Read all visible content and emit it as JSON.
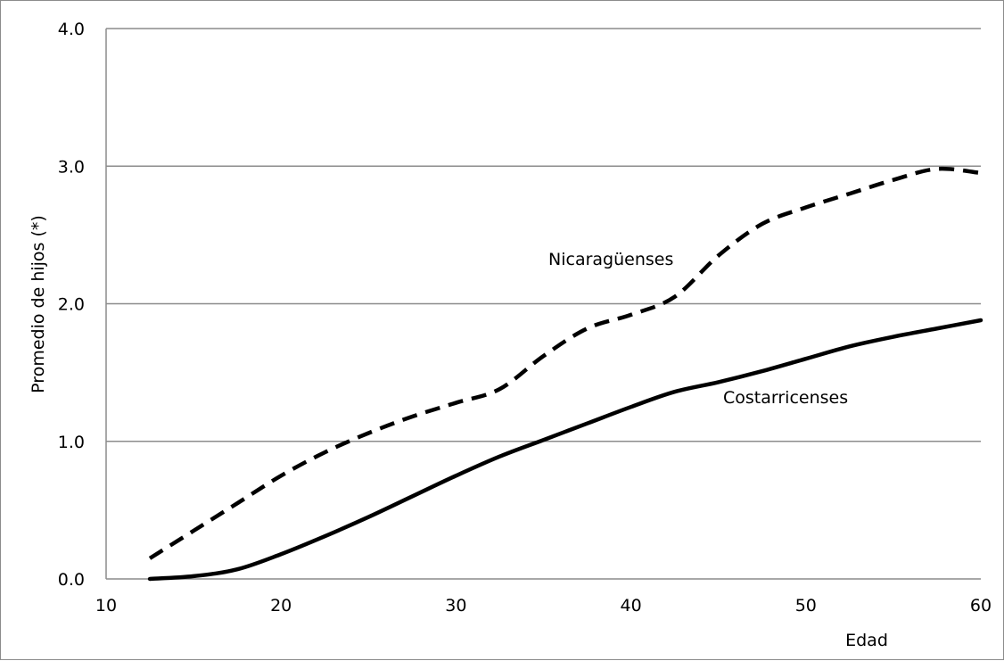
{
  "chart_data": {
    "type": "line",
    "title": "",
    "xlabel": "Edad",
    "ylabel": "Promedio de hijos (*)",
    "xlim": [
      10,
      60
    ],
    "ylim": [
      0,
      4
    ],
    "xticks": [
      10,
      20,
      30,
      40,
      50,
      60
    ],
    "yticks": [
      0,
      1,
      2,
      3,
      4
    ],
    "xtick_labels": [
      "10",
      "20",
      "30",
      "40",
      "50",
      "60"
    ],
    "ytick_labels": [
      "0.0",
      "1.0",
      "2.0",
      "3.0",
      "4.0"
    ],
    "grid": "horizontal",
    "legend": "none",
    "series": [
      {
        "name": "Nicaragüenses",
        "style": "dashed",
        "color": "#000000",
        "x": [
          12.5,
          15,
          17.5,
          20,
          22.5,
          25,
          27.5,
          30,
          32.5,
          35,
          37.5,
          40,
          42.5,
          45,
          47.5,
          50,
          52.5,
          55,
          57.5,
          60
        ],
        "y": [
          0.15,
          0.35,
          0.55,
          0.75,
          0.92,
          1.06,
          1.18,
          1.28,
          1.38,
          1.62,
          1.82,
          1.92,
          2.05,
          2.35,
          2.58,
          2.7,
          2.8,
          2.9,
          2.98,
          2.95
        ]
      },
      {
        "name": "Costarricenses",
        "style": "solid",
        "color": "#000000",
        "x": [
          12.5,
          15,
          17.5,
          20,
          22.5,
          25,
          27.5,
          30,
          32.5,
          35,
          37.5,
          40,
          42.5,
          45,
          47.5,
          50,
          52.5,
          55,
          57.5,
          60
        ],
        "y": [
          0.0,
          0.02,
          0.07,
          0.18,
          0.31,
          0.45,
          0.6,
          0.75,
          0.89,
          1.01,
          1.13,
          1.25,
          1.36,
          1.43,
          1.51,
          1.6,
          1.69,
          1.76,
          1.82,
          1.88
        ]
      }
    ]
  }
}
